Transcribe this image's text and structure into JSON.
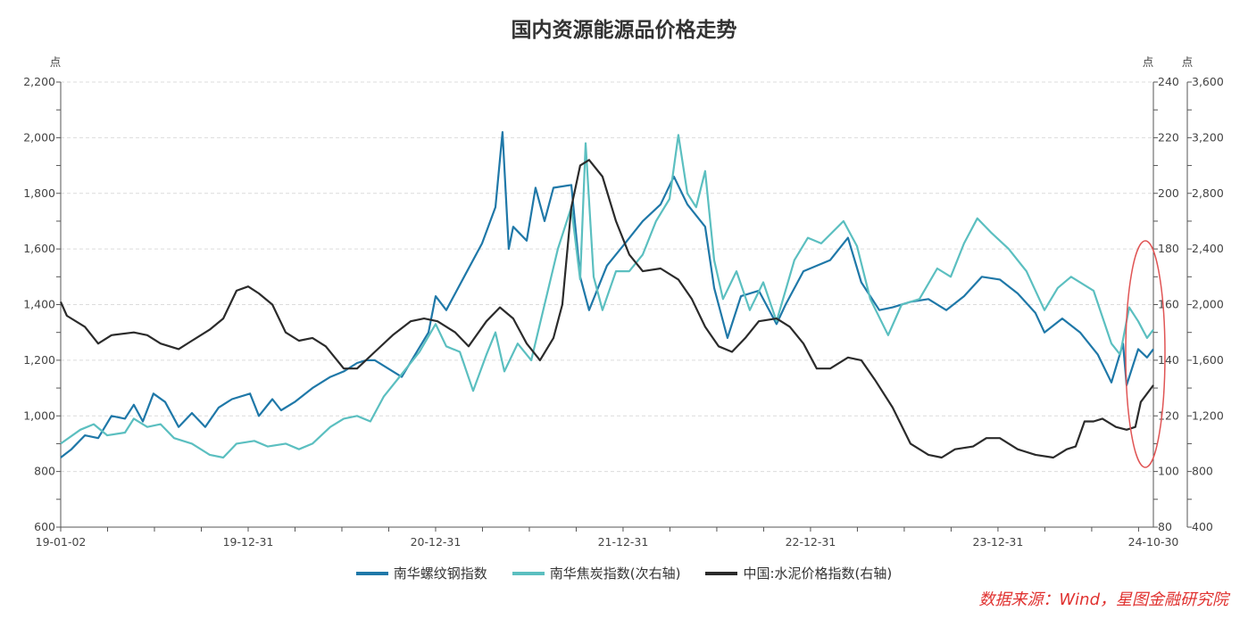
{
  "chart_data": {
    "type": "line",
    "title": "国内资源能源品价格走势",
    "source": "数据来源：Wind，星图金融研究院",
    "x_ticks": [
      {
        "x": 2019.0,
        "label": "19-01-02"
      },
      {
        "x": 2020.0,
        "label": "19-12-31"
      },
      {
        "x": 2021.0,
        "label": "20-12-31"
      },
      {
        "x": 2022.0,
        "label": "21-12-31"
      },
      {
        "x": 2023.0,
        "label": "22-12-31"
      },
      {
        "x": 2024.0,
        "label": "23-12-31"
      },
      {
        "x": 2024.829,
        "label": "24-10-30"
      }
    ],
    "xlim": [
      2019.0,
      2024.829
    ],
    "axes": {
      "left": {
        "unit": "点",
        "ylim": [
          600,
          2200
        ],
        "ticks": [
          600,
          800,
          1000,
          1200,
          1400,
          1600,
          1800,
          2000,
          2200
        ],
        "labels": [
          "600",
          "800",
          "1,000",
          "1,200",
          "1,400",
          "1,600",
          "1,800",
          "2,000",
          "2,200"
        ]
      },
      "right": {
        "unit": "点",
        "ylim": [
          80,
          240
        ],
        "ticks": [
          80,
          100,
          120,
          140,
          160,
          180,
          200,
          220,
          240
        ],
        "labels": [
          "80",
          "100",
          "120",
          "140",
          "160",
          "180",
          "200",
          "220",
          "240"
        ]
      },
      "right2": {
        "unit": "点",
        "ylim": [
          400,
          3600
        ],
        "ticks": [
          400,
          800,
          1200,
          1600,
          2000,
          2400,
          2800,
          3200,
          3600
        ],
        "labels": [
          "400",
          "800",
          "1,200",
          "1,600",
          "2,000",
          "2,400",
          "2,800",
          "3,200",
          "3,600"
        ]
      }
    },
    "grid": true,
    "legend_position": "bottom",
    "annotation": "red-ellipse-around-latest-values",
    "series": [
      {
        "name": "南华螺纹钢指数",
        "axis": "left",
        "color": "#1f78a8",
        "points": [
          [
            2019.0,
            850
          ],
          [
            2019.057,
            880
          ],
          [
            2019.129,
            930
          ],
          [
            2019.2,
            920
          ],
          [
            2019.271,
            1000
          ],
          [
            2019.343,
            990
          ],
          [
            2019.39,
            1040
          ],
          [
            2019.438,
            980
          ],
          [
            2019.495,
            1080
          ],
          [
            2019.557,
            1050
          ],
          [
            2019.629,
            960
          ],
          [
            2019.7,
            1010
          ],
          [
            2019.771,
            960
          ],
          [
            2019.843,
            1030
          ],
          [
            2019.914,
            1060
          ],
          [
            2020.01,
            1080
          ],
          [
            2020.057,
            1000
          ],
          [
            2020.129,
            1060
          ],
          [
            2020.176,
            1020
          ],
          [
            2020.248,
            1050
          ],
          [
            2020.343,
            1100
          ],
          [
            2020.438,
            1140
          ],
          [
            2020.51,
            1160
          ],
          [
            2020.581,
            1190
          ],
          [
            2020.629,
            1200
          ],
          [
            2020.676,
            1200
          ],
          [
            2020.819,
            1140
          ],
          [
            2020.962,
            1300
          ],
          [
            2021.0,
            1430
          ],
          [
            2021.057,
            1380
          ],
          [
            2021.152,
            1500
          ],
          [
            2021.248,
            1620
          ],
          [
            2021.319,
            1750
          ],
          [
            2021.357,
            2020
          ],
          [
            2021.39,
            1600
          ],
          [
            2021.414,
            1680
          ],
          [
            2021.486,
            1630
          ],
          [
            2021.533,
            1820
          ],
          [
            2021.581,
            1700
          ],
          [
            2021.629,
            1820
          ],
          [
            2021.724,
            1830
          ],
          [
            2021.771,
            1500
          ],
          [
            2021.819,
            1380
          ],
          [
            2021.914,
            1540
          ],
          [
            2022.01,
            1620
          ],
          [
            2022.105,
            1700
          ],
          [
            2022.2,
            1760
          ],
          [
            2022.271,
            1860
          ],
          [
            2022.343,
            1760
          ],
          [
            2022.438,
            1680
          ],
          [
            2022.486,
            1460
          ],
          [
            2022.557,
            1280
          ],
          [
            2022.629,
            1430
          ],
          [
            2022.724,
            1450
          ],
          [
            2022.819,
            1330
          ],
          [
            2022.867,
            1400
          ],
          [
            2022.962,
            1520
          ],
          [
            2023.105,
            1560
          ],
          [
            2023.2,
            1640
          ],
          [
            2023.271,
            1480
          ],
          [
            2023.367,
            1380
          ],
          [
            2023.438,
            1390
          ],
          [
            2023.533,
            1410
          ],
          [
            2023.629,
            1420
          ],
          [
            2023.724,
            1380
          ],
          [
            2023.819,
            1430
          ],
          [
            2023.914,
            1500
          ],
          [
            2024.01,
            1490
          ],
          [
            2024.105,
            1440
          ],
          [
            2024.2,
            1370
          ],
          [
            2024.248,
            1300
          ],
          [
            2024.343,
            1350
          ],
          [
            2024.438,
            1300
          ],
          [
            2024.533,
            1220
          ],
          [
            2024.605,
            1120
          ],
          [
            2024.667,
            1260
          ],
          [
            2024.686,
            1110
          ],
          [
            2024.748,
            1240
          ],
          [
            2024.795,
            1210
          ],
          [
            2024.829,
            1240
          ]
        ]
      },
      {
        "name": "南华焦炭指数(次右轴)",
        "axis": "right2",
        "color": "#5bbfc0",
        "points": [
          [
            2019.0,
            1000
          ],
          [
            2019.105,
            1100
          ],
          [
            2019.176,
            1140
          ],
          [
            2019.248,
            1060
          ],
          [
            2019.343,
            1080
          ],
          [
            2019.39,
            1180
          ],
          [
            2019.462,
            1120
          ],
          [
            2019.533,
            1140
          ],
          [
            2019.605,
            1040
          ],
          [
            2019.7,
            1000
          ],
          [
            2019.795,
            920
          ],
          [
            2019.867,
            900
          ],
          [
            2019.938,
            1000
          ],
          [
            2020.033,
            1020
          ],
          [
            2020.105,
            980
          ],
          [
            2020.2,
            1000
          ],
          [
            2020.271,
            960
          ],
          [
            2020.343,
            1000
          ],
          [
            2020.438,
            1120
          ],
          [
            2020.51,
            1180
          ],
          [
            2020.581,
            1200
          ],
          [
            2020.652,
            1160
          ],
          [
            2020.724,
            1340
          ],
          [
            2020.819,
            1500
          ],
          [
            2020.914,
            1660
          ],
          [
            2021.0,
            1860
          ],
          [
            2021.057,
            1700
          ],
          [
            2021.129,
            1660
          ],
          [
            2021.2,
            1380
          ],
          [
            2021.271,
            1640
          ],
          [
            2021.319,
            1800
          ],
          [
            2021.367,
            1520
          ],
          [
            2021.438,
            1720
          ],
          [
            2021.51,
            1600
          ],
          [
            2021.581,
            2000
          ],
          [
            2021.652,
            2400
          ],
          [
            2021.724,
            2700
          ],
          [
            2021.771,
            2180
          ],
          [
            2021.8,
            3160
          ],
          [
            2021.843,
            2200
          ],
          [
            2021.89,
            1960
          ],
          [
            2021.962,
            2240
          ],
          [
            2022.033,
            2240
          ],
          [
            2022.105,
            2360
          ],
          [
            2022.176,
            2600
          ],
          [
            2022.248,
            2760
          ],
          [
            2022.295,
            3220
          ],
          [
            2022.343,
            2800
          ],
          [
            2022.39,
            2700
          ],
          [
            2022.438,
            2960
          ],
          [
            2022.486,
            2320
          ],
          [
            2022.533,
            2040
          ],
          [
            2022.605,
            2240
          ],
          [
            2022.676,
            1960
          ],
          [
            2022.748,
            2160
          ],
          [
            2022.819,
            1880
          ],
          [
            2022.914,
            2320
          ],
          [
            2022.986,
            2480
          ],
          [
            2023.057,
            2440
          ],
          [
            2023.176,
            2600
          ],
          [
            2023.248,
            2420
          ],
          [
            2023.319,
            2040
          ],
          [
            2023.414,
            1780
          ],
          [
            2023.486,
            2000
          ],
          [
            2023.581,
            2040
          ],
          [
            2023.676,
            2260
          ],
          [
            2023.748,
            2200
          ],
          [
            2023.819,
            2440
          ],
          [
            2023.89,
            2620
          ],
          [
            2023.962,
            2520
          ],
          [
            2024.057,
            2400
          ],
          [
            2024.152,
            2240
          ],
          [
            2024.248,
            1960
          ],
          [
            2024.319,
            2120
          ],
          [
            2024.39,
            2200
          ],
          [
            2024.51,
            2100
          ],
          [
            2024.605,
            1720
          ],
          [
            2024.652,
            1640
          ],
          [
            2024.7,
            1980
          ],
          [
            2024.748,
            1880
          ],
          [
            2024.795,
            1760
          ],
          [
            2024.829,
            1820
          ]
        ]
      },
      {
        "name": "中国:水泥价格指数(右轴)",
        "axis": "right",
        "color": "#2b2b2b",
        "points": [
          [
            2019.0,
            161
          ],
          [
            2019.033,
            156
          ],
          [
            2019.129,
            152
          ],
          [
            2019.2,
            146
          ],
          [
            2019.271,
            149
          ],
          [
            2019.39,
            150
          ],
          [
            2019.462,
            149
          ],
          [
            2019.533,
            146
          ],
          [
            2019.629,
            144
          ],
          [
            2019.7,
            147
          ],
          [
            2019.795,
            151
          ],
          [
            2019.867,
            155
          ],
          [
            2019.938,
            165
          ],
          [
            2020.0,
            166.5
          ],
          [
            2020.057,
            164
          ],
          [
            2020.129,
            160
          ],
          [
            2020.2,
            150
          ],
          [
            2020.271,
            147
          ],
          [
            2020.343,
            148
          ],
          [
            2020.414,
            145
          ],
          [
            2020.51,
            137
          ],
          [
            2020.581,
            137
          ],
          [
            2020.676,
            143
          ],
          [
            2020.771,
            149
          ],
          [
            2020.867,
            154
          ],
          [
            2020.938,
            155
          ],
          [
            2021.01,
            154
          ],
          [
            2021.105,
            150
          ],
          [
            2021.176,
            145
          ],
          [
            2021.271,
            154
          ],
          [
            2021.343,
            159
          ],
          [
            2021.414,
            155
          ],
          [
            2021.486,
            146
          ],
          [
            2021.557,
            140
          ],
          [
            2021.629,
            148
          ],
          [
            2021.676,
            160
          ],
          [
            2021.724,
            195
          ],
          [
            2021.771,
            210
          ],
          [
            2021.819,
            212
          ],
          [
            2021.89,
            206
          ],
          [
            2021.962,
            190
          ],
          [
            2022.033,
            178
          ],
          [
            2022.105,
            172
          ],
          [
            2022.2,
            173
          ],
          [
            2022.295,
            169
          ],
          [
            2022.367,
            162
          ],
          [
            2022.438,
            152
          ],
          [
            2022.51,
            145
          ],
          [
            2022.581,
            143
          ],
          [
            2022.652,
            148
          ],
          [
            2022.724,
            154
          ],
          [
            2022.819,
            155
          ],
          [
            2022.89,
            152
          ],
          [
            2022.962,
            146
          ],
          [
            2023.033,
            137
          ],
          [
            2023.105,
            137
          ],
          [
            2023.2,
            141
          ],
          [
            2023.271,
            140
          ],
          [
            2023.343,
            133
          ],
          [
            2023.438,
            123
          ],
          [
            2023.533,
            110
          ],
          [
            2023.629,
            106
          ],
          [
            2023.7,
            105
          ],
          [
            2023.771,
            108
          ],
          [
            2023.867,
            109
          ],
          [
            2023.938,
            112
          ],
          [
            2024.01,
            112
          ],
          [
            2024.105,
            108
          ],
          [
            2024.2,
            106
          ],
          [
            2024.295,
            105
          ],
          [
            2024.367,
            108
          ],
          [
            2024.414,
            109
          ],
          [
            2024.462,
            118
          ],
          [
            2024.51,
            118
          ],
          [
            2024.557,
            119
          ],
          [
            2024.629,
            116
          ],
          [
            2024.686,
            115
          ],
          [
            2024.733,
            116
          ],
          [
            2024.762,
            125
          ],
          [
            2024.829,
            131
          ]
        ]
      }
    ]
  }
}
